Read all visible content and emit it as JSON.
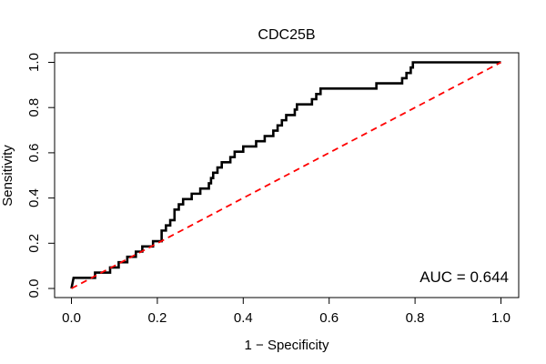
{
  "chart_data": {
    "type": "line",
    "title": "CDC25B",
    "xlabel": "1 − Specificity",
    "ylabel": "Sensitivity",
    "xlim": [
      0.0,
      1.0
    ],
    "ylim": [
      0.0,
      1.0
    ],
    "x_ticks": [
      0.0,
      0.2,
      0.4,
      0.6,
      0.8,
      1.0
    ],
    "y_ticks": [
      0.0,
      0.2,
      0.4,
      0.6,
      0.8,
      1.0
    ],
    "x_tick_labels": [
      "0.0",
      "0.2",
      "0.4",
      "0.6",
      "0.8",
      "1.0"
    ],
    "y_tick_labels": [
      "0.0",
      "0.2",
      "0.4",
      "0.6",
      "0.8",
      "1.0"
    ],
    "grid": false,
    "annotation": "AUC = 0.644",
    "annotation_position": "bottom-right",
    "series": [
      {
        "name": "ROC curve",
        "color": "#000000",
        "style": "step",
        "x": [
          0.0,
          0.005,
          0.055,
          0.055,
          0.09,
          0.09,
          0.11,
          0.11,
          0.13,
          0.13,
          0.15,
          0.15,
          0.165,
          0.165,
          0.19,
          0.19,
          0.21,
          0.21,
          0.22,
          0.22,
          0.23,
          0.23,
          0.24,
          0.24,
          0.25,
          0.25,
          0.26,
          0.26,
          0.28,
          0.28,
          0.3,
          0.3,
          0.32,
          0.32,
          0.325,
          0.325,
          0.33,
          0.33,
          0.34,
          0.34,
          0.35,
          0.35,
          0.37,
          0.37,
          0.38,
          0.38,
          0.4,
          0.4,
          0.43,
          0.43,
          0.45,
          0.45,
          0.47,
          0.47,
          0.48,
          0.48,
          0.49,
          0.49,
          0.5,
          0.5,
          0.52,
          0.52,
          0.525,
          0.525,
          0.56,
          0.56,
          0.57,
          0.57,
          0.58,
          0.58,
          0.59,
          0.59,
          0.71,
          0.71,
          0.77,
          0.77,
          0.775,
          0.775,
          0.78,
          0.78,
          0.785,
          0.785,
          0.79,
          0.79,
          0.795,
          0.795,
          0.8,
          1.0
        ],
        "y": [
          0.0,
          0.047,
          0.047,
          0.07,
          0.07,
          0.093,
          0.093,
          0.116,
          0.116,
          0.14,
          0.14,
          0.163,
          0.163,
          0.186,
          0.186,
          0.209,
          0.209,
          0.256,
          0.256,
          0.279,
          0.279,
          0.302,
          0.302,
          0.349,
          0.349,
          0.372,
          0.372,
          0.395,
          0.395,
          0.419,
          0.419,
          0.442,
          0.442,
          0.465,
          0.465,
          0.488,
          0.488,
          0.512,
          0.512,
          0.535,
          0.535,
          0.558,
          0.558,
          0.581,
          0.581,
          0.605,
          0.605,
          0.628,
          0.628,
          0.651,
          0.651,
          0.674,
          0.674,
          0.698,
          0.698,
          0.721,
          0.721,
          0.744,
          0.744,
          0.767,
          0.767,
          0.791,
          0.791,
          0.814,
          0.814,
          0.837,
          0.837,
          0.86,
          0.86,
          0.884,
          0.884,
          0.884,
          0.884,
          0.907,
          0.907,
          0.93,
          0.93,
          0.93,
          0.93,
          0.953,
          0.953,
          0.953,
          0.953,
          0.977,
          0.977,
          1.0,
          1.0,
          1.0
        ]
      },
      {
        "name": "Reference diagonal",
        "color": "#ff0000",
        "style": "dashed",
        "x": [
          0.0,
          1.0
        ],
        "y": [
          0.0,
          1.0
        ]
      }
    ]
  }
}
